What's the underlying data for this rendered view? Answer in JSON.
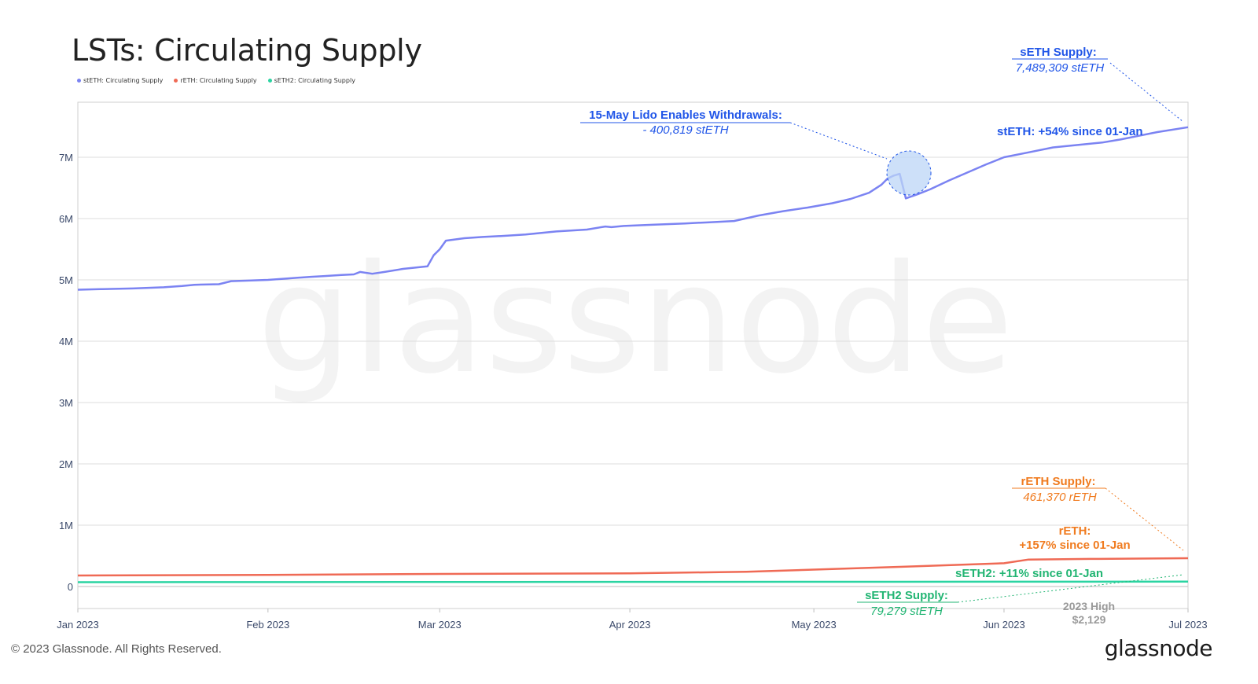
{
  "chart_data": {
    "type": "line",
    "title": "LSTs: Circulating Supply",
    "watermark": "glassnode",
    "x_ticks": [
      "Jan 2023",
      "Feb 2023",
      "Mar 2023",
      "Apr 2023",
      "May 2023",
      "Jun 2023",
      "Jul 2023"
    ],
    "y_ticks": [
      "0",
      "1M",
      "2M",
      "3M",
      "4M",
      "5M",
      "6M",
      "7M"
    ],
    "ylim": [
      0,
      7900000
    ],
    "xlim": [
      "2023-01-01",
      "2023-07-01"
    ],
    "grid": true,
    "legend_position": "top-left",
    "series": [
      {
        "name": "stETH: Circulating Supply",
        "color": "#7b83f2",
        "points": [
          [
            "2023-01-01",
            4840000
          ],
          [
            "2023-01-05",
            4850000
          ],
          [
            "2023-01-10",
            4860000
          ],
          [
            "2023-01-15",
            4880000
          ],
          [
            "2023-01-18",
            4900000
          ],
          [
            "2023-01-20",
            4920000
          ],
          [
            "2023-01-24",
            4930000
          ],
          [
            "2023-01-26",
            4980000
          ],
          [
            "2023-02-01",
            5000000
          ],
          [
            "2023-02-05",
            5030000
          ],
          [
            "2023-02-08",
            5050000
          ],
          [
            "2023-02-10",
            5060000
          ],
          [
            "2023-02-13",
            5080000
          ],
          [
            "2023-02-15",
            5090000
          ],
          [
            "2023-02-16",
            5130000
          ],
          [
            "2023-02-18",
            5100000
          ],
          [
            "2023-02-20",
            5130000
          ],
          [
            "2023-02-23",
            5180000
          ],
          [
            "2023-02-25",
            5200000
          ],
          [
            "2023-02-27",
            5220000
          ],
          [
            "2023-02-28",
            5400000
          ],
          [
            "2023-03-01",
            5500000
          ],
          [
            "2023-03-02",
            5640000
          ],
          [
            "2023-03-05",
            5680000
          ],
          [
            "2023-03-08",
            5700000
          ],
          [
            "2023-03-12",
            5720000
          ],
          [
            "2023-03-15",
            5740000
          ],
          [
            "2023-03-20",
            5790000
          ],
          [
            "2023-03-25",
            5820000
          ],
          [
            "2023-03-28",
            5870000
          ],
          [
            "2023-03-29",
            5860000
          ],
          [
            "2023-03-31",
            5880000
          ],
          [
            "2023-04-05",
            5900000
          ],
          [
            "2023-04-10",
            5920000
          ],
          [
            "2023-04-14",
            5940000
          ],
          [
            "2023-04-18",
            5960000
          ],
          [
            "2023-04-22",
            6050000
          ],
          [
            "2023-04-26",
            6120000
          ],
          [
            "2023-04-30",
            6180000
          ],
          [
            "2023-05-04",
            6250000
          ],
          [
            "2023-05-07",
            6320000
          ],
          [
            "2023-05-10",
            6420000
          ],
          [
            "2023-05-12",
            6550000
          ],
          [
            "2023-05-13",
            6650000
          ],
          [
            "2023-05-14",
            6700000
          ],
          [
            "2023-05-15",
            6730000
          ],
          [
            "2023-05-16",
            6330000
          ],
          [
            "2023-05-18",
            6400000
          ],
          [
            "2023-05-20",
            6480000
          ],
          [
            "2023-05-23",
            6620000
          ],
          [
            "2023-05-26",
            6750000
          ],
          [
            "2023-05-29",
            6880000
          ],
          [
            "2023-06-01",
            7000000
          ],
          [
            "2023-06-05",
            7080000
          ],
          [
            "2023-06-09",
            7160000
          ],
          [
            "2023-06-13",
            7200000
          ],
          [
            "2023-06-17",
            7240000
          ],
          [
            "2023-06-20",
            7290000
          ],
          [
            "2023-06-23",
            7350000
          ],
          [
            "2023-06-26",
            7410000
          ],
          [
            "2023-07-01",
            7489309
          ]
        ]
      },
      {
        "name": "rETH: Circulating Supply",
        "color": "#ef6a55",
        "points": [
          [
            "2023-01-01",
            180000
          ],
          [
            "2023-02-01",
            190000
          ],
          [
            "2023-03-01",
            205000
          ],
          [
            "2023-04-01",
            215000
          ],
          [
            "2023-04-20",
            240000
          ],
          [
            "2023-05-01",
            275000
          ],
          [
            "2023-05-15",
            320000
          ],
          [
            "2023-06-01",
            380000
          ],
          [
            "2023-06-05",
            440000
          ],
          [
            "2023-06-15",
            450000
          ],
          [
            "2023-07-01",
            461370
          ]
        ]
      },
      {
        "name": "sETH2: Circulating Supply",
        "color": "#2bd4a2",
        "points": [
          [
            "2023-01-01",
            71000
          ],
          [
            "2023-07-01",
            79279
          ]
        ]
      }
    ],
    "annotations": {
      "withdrawals_title": "15-May Lido Enables Withdrawals:",
      "withdrawals_value": "- 400,819 stETH",
      "seth_supply_title": "sETH Supply:",
      "seth_supply_value": "7,489,309 stETH",
      "steth_change": "stETH: +54% since 01-Jan",
      "reth_supply_title": "rETH Supply:",
      "reth_supply_value": "461,370 rETH",
      "reth_change_line1": "rETH:",
      "reth_change_line2": "+157% since 01-Jan",
      "seth2_change": "sETH2: +11% since 01-Jan",
      "seth2_supply_title": "sETH2 Supply:",
      "seth2_supply_value": "79,279 stETH",
      "high_line1": "2023 High",
      "high_line2": "$2,129"
    },
    "colors": {
      "annotation_blue": "#2156e8",
      "annotation_orange": "#f07b1f",
      "annotation_green": "#22b573",
      "grid": "#dddddd",
      "axis_text": "#3b4a6b"
    }
  },
  "footer": {
    "copyright": "© 2023 Glassnode. All Rights Reserved.",
    "logo": "glassnode"
  }
}
